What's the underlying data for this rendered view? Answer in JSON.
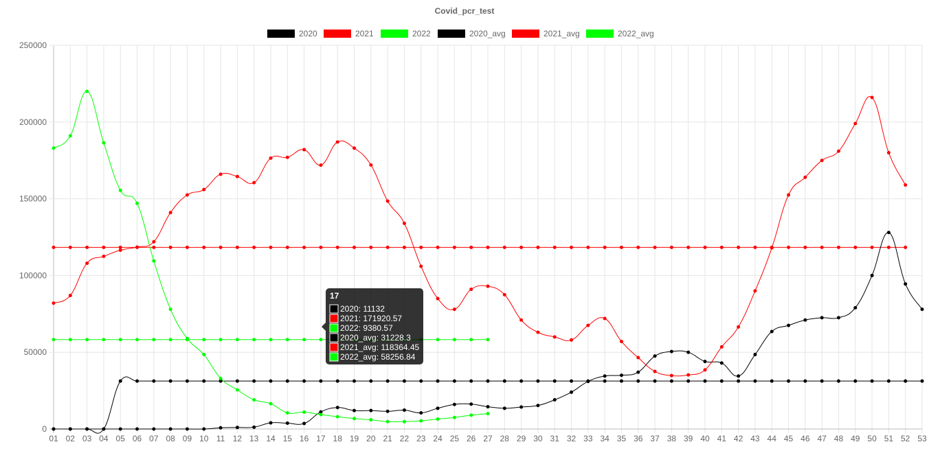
{
  "chart_data": {
    "type": "line",
    "title": "Covid_pcr_test",
    "xlabel": "",
    "ylabel": "",
    "ylim": [
      0,
      250000
    ],
    "yticks": [
      0,
      50000,
      100000,
      150000,
      200000,
      250000
    ],
    "grid": true,
    "legend_position": "top",
    "categories": [
      "01",
      "02",
      "03",
      "04",
      "05",
      "06",
      "07",
      "08",
      "09",
      "10",
      "11",
      "12",
      "13",
      "14",
      "15",
      "16",
      "17",
      "18",
      "19",
      "20",
      "21",
      "22",
      "23",
      "24",
      "25",
      "26",
      "27",
      "28",
      "29",
      "30",
      "31",
      "32",
      "33",
      "34",
      "35",
      "36",
      "37",
      "38",
      "39",
      "40",
      "41",
      "42",
      "43",
      "44",
      "45",
      "46",
      "47",
      "48",
      "49",
      "50",
      "51",
      "52",
      "53"
    ],
    "series": [
      {
        "name": "2020",
        "color": "#000000",
        "values": [
          0,
          0,
          0,
          0,
          0,
          0,
          0,
          0,
          0,
          0,
          800,
          1000,
          1200,
          4000,
          3800,
          3600,
          11132,
          14000,
          12000,
          12000,
          11500,
          12300,
          10500,
          13500,
          16000,
          16200,
          14500,
          13500,
          14300,
          15300,
          19000,
          24000,
          31000,
          34500,
          35000,
          37000,
          47500,
          50500,
          50000,
          44000,
          43000,
          34500,
          48500,
          63500,
          67500,
          71000,
          72500,
          72500,
          79000,
          100000,
          128000,
          94500,
          78000
        ]
      },
      {
        "name": "2021",
        "color": "#ff0000",
        "values": [
          82000,
          87000,
          108000,
          112500,
          116500,
          118500,
          122000,
          141000,
          152500,
          156000,
          166000,
          164500,
          160500,
          176500,
          177000,
          182000,
          171920.57,
          187000,
          183000,
          172000,
          148500,
          134000,
          106000,
          85000,
          78000,
          91000,
          93000,
          87500,
          71000,
          63000,
          60000,
          58000,
          67500,
          72000,
          57000,
          46500,
          37500,
          34800,
          35200,
          38500,
          53500,
          66500,
          90000,
          118000,
          152500,
          164000,
          175000,
          181000,
          199000,
          216000,
          180000,
          159000,
          null
        ]
      },
      {
        "name": "2022",
        "color": "#00ff00",
        "values": [
          183000,
          191000,
          220000,
          186500,
          155500,
          147000,
          109500,
          78000,
          59000,
          48500,
          33000,
          25500,
          19000,
          16500,
          10500,
          11000,
          9380.57,
          8000,
          6800,
          6000,
          4800,
          4800,
          5300,
          6500,
          7500,
          9000,
          10000,
          null,
          null,
          null,
          null,
          null,
          null,
          null,
          null,
          null,
          null,
          null,
          null,
          null,
          null,
          null,
          null,
          null,
          null,
          null,
          null,
          null,
          null,
          null,
          null,
          null,
          null
        ]
      },
      {
        "name": "2020_avg",
        "color": "#000000",
        "values": [
          0,
          0,
          0,
          0,
          31228.3,
          31228.3,
          31228.3,
          31228.3,
          31228.3,
          31228.3,
          31228.3,
          31228.3,
          31228.3,
          31228.3,
          31228.3,
          31228.3,
          31228.3,
          31228.3,
          31228.3,
          31228.3,
          31228.3,
          31228.3,
          31228.3,
          31228.3,
          31228.3,
          31228.3,
          31228.3,
          31228.3,
          31228.3,
          31228.3,
          31228.3,
          31228.3,
          31228.3,
          31228.3,
          31228.3,
          31228.3,
          31228.3,
          31228.3,
          31228.3,
          31228.3,
          31228.3,
          31228.3,
          31228.3,
          31228.3,
          31228.3,
          31228.3,
          31228.3,
          31228.3,
          31228.3,
          31228.3,
          31228.3,
          31228.3,
          31228.3
        ]
      },
      {
        "name": "2021_avg",
        "color": "#ff0000",
        "values": [
          118364.45,
          118364.45,
          118364.45,
          118364.45,
          118364.45,
          118364.45,
          118364.45,
          118364.45,
          118364.45,
          118364.45,
          118364.45,
          118364.45,
          118364.45,
          118364.45,
          118364.45,
          118364.45,
          118364.45,
          118364.45,
          118364.45,
          118364.45,
          118364.45,
          118364.45,
          118364.45,
          118364.45,
          118364.45,
          118364.45,
          118364.45,
          118364.45,
          118364.45,
          118364.45,
          118364.45,
          118364.45,
          118364.45,
          118364.45,
          118364.45,
          118364.45,
          118364.45,
          118364.45,
          118364.45,
          118364.45,
          118364.45,
          118364.45,
          118364.45,
          118364.45,
          118364.45,
          118364.45,
          118364.45,
          118364.45,
          118364.45,
          118364.45,
          118364.45,
          118364.45,
          null
        ]
      },
      {
        "name": "2022_avg",
        "color": "#00ff00",
        "values": [
          58256.84,
          58256.84,
          58256.84,
          58256.84,
          58256.84,
          58256.84,
          58256.84,
          58256.84,
          58256.84,
          58256.84,
          58256.84,
          58256.84,
          58256.84,
          58256.84,
          58256.84,
          58256.84,
          58256.84,
          58256.84,
          58256.84,
          58256.84,
          58256.84,
          58256.84,
          58256.84,
          58256.84,
          58256.84,
          58256.84,
          58256.84,
          null,
          null,
          null,
          null,
          null,
          null,
          null,
          null,
          null,
          null,
          null,
          null,
          null,
          null,
          null,
          null,
          null,
          null,
          null,
          null,
          null,
          null,
          null,
          null,
          null,
          null
        ]
      }
    ],
    "tooltip": {
      "category": "17",
      "lines": [
        {
          "series": "2020",
          "text": "2020: 11132",
          "color": "#000000"
        },
        {
          "series": "2021",
          "text": "2021: 171920.57",
          "color": "#ff0000"
        },
        {
          "series": "2022",
          "text": "2022: 9380.57",
          "color": "#00ff00"
        },
        {
          "series": "2020_avg",
          "text": "2020_avg: 31228.3",
          "color": "#000000"
        },
        {
          "series": "2021_avg",
          "text": "2021_avg: 118364.45",
          "color": "#ff0000"
        },
        {
          "series": "2022_avg",
          "text": "2022_avg: 58256.84",
          "color": "#00ff00"
        }
      ]
    }
  }
}
